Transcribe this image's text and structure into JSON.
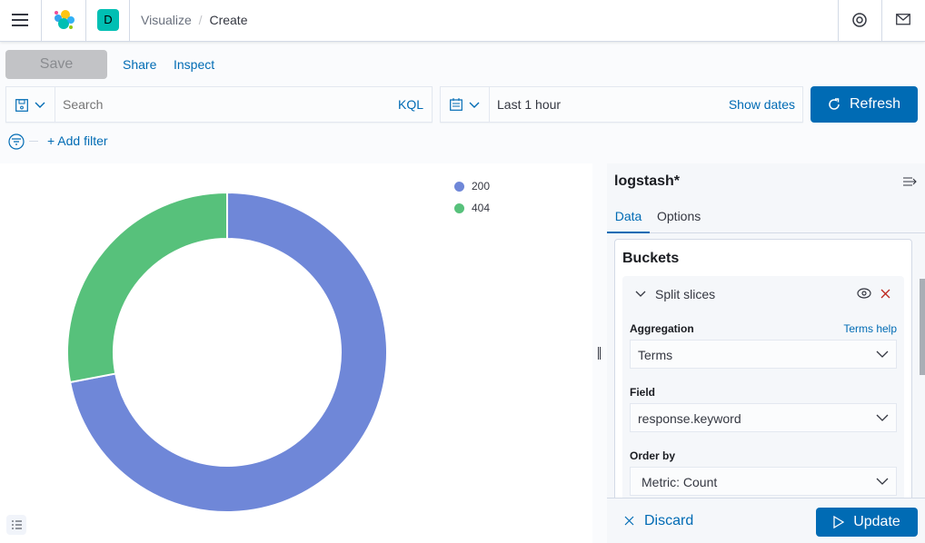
{
  "header": {
    "space_initial": "D",
    "breadcrumbs": [
      "Visualize",
      "Create"
    ]
  },
  "toolbar": {
    "save": "Save",
    "share": "Share",
    "inspect": "Inspect"
  },
  "query": {
    "placeholder": "Search",
    "language": "KQL",
    "time": "Last 1 hour",
    "show_dates": "Show dates",
    "refresh": "Refresh",
    "add_filter": "+ Add filter"
  },
  "chart_data": {
    "type": "pie",
    "donut": true,
    "categories": [
      "200",
      "404"
    ],
    "values": [
      72,
      28
    ],
    "colors": [
      "#6f87d8",
      "#57c17b"
    ],
    "legend": "top-right"
  },
  "sidebar": {
    "index": "logstash*",
    "tabs": [
      "Data",
      "Options"
    ],
    "active_tab": "Data",
    "section": "Buckets",
    "agg_title": "Split slices",
    "aggregation_label": "Aggregation",
    "terms_help": "Terms help",
    "aggregation": "Terms",
    "field_label": "Field",
    "field": "response.keyword",
    "order_label": "Order by",
    "order": "Metric: Count",
    "discard": "Discard",
    "update": "Update"
  },
  "colors": {
    "accent": "#006bb4",
    "danger": "#bd271e",
    "space": "#00bfb3"
  }
}
